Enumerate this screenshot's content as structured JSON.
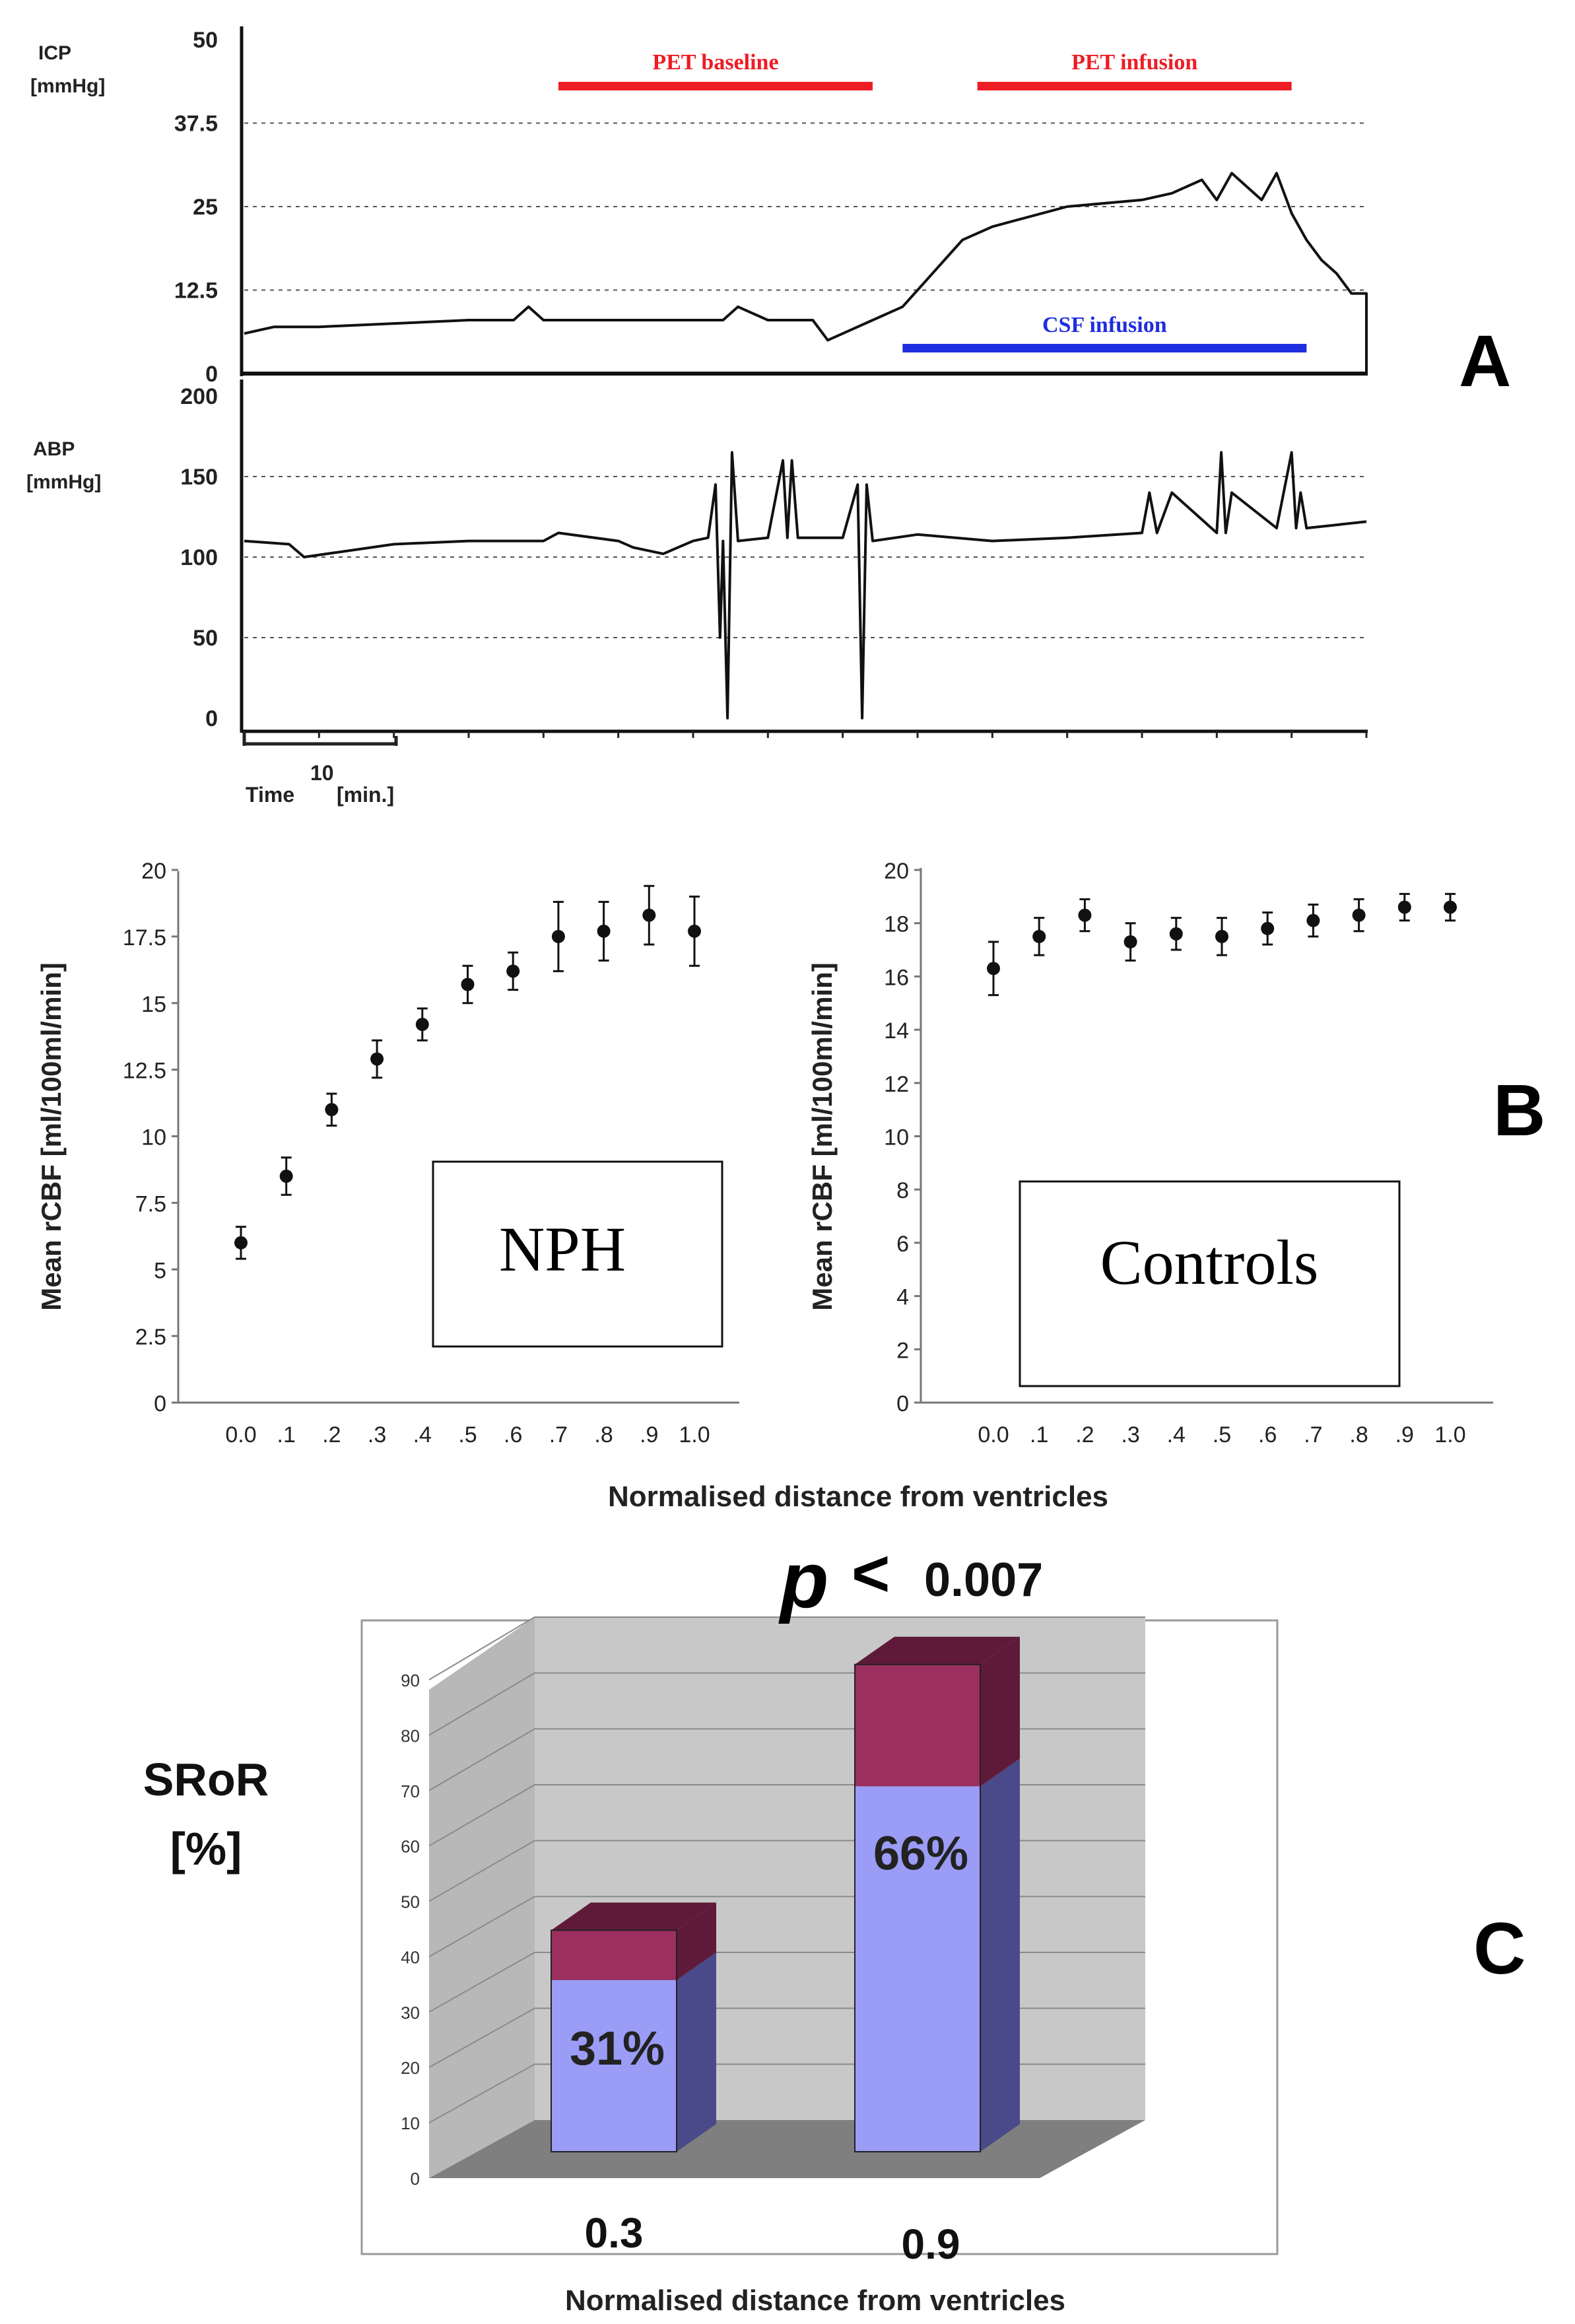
{
  "panel_labels": {
    "a": "A",
    "b": "B",
    "c": "C"
  },
  "colors": {
    "pet_bar": "#ee1c24",
    "csf_bar": "#1f2de0",
    "trace": "#111111",
    "grid": "#555555",
    "bar_front": "#9a9cf5",
    "bar_front_side": "#4a4a8a",
    "bar_top_segment": "#9b2f5f",
    "bar_top_segment_dark": "#5e1a38",
    "wall": "#c8c8c8",
    "floor": "#808080"
  },
  "chart_data": [
    {
      "id": "A-icp",
      "type": "line",
      "ylabel_line1": "ICP",
      "ylabel_line2": "[mmHg]",
      "yticks": [
        "50",
        "37.5",
        "25",
        "12.5",
        "0"
      ],
      "ylim": [
        0,
        50
      ],
      "x_unit": "min",
      "duration_min": 75,
      "annotations": [
        {
          "label": "PET baseline",
          "start_min": 21,
          "end_min": 42,
          "color": "#ee1c24",
          "position": "top"
        },
        {
          "label": "PET infusion",
          "start_min": 49,
          "end_min": 70,
          "color": "#ee1c24",
          "position": "top"
        },
        {
          "label": "CSF infusion",
          "start_min": 44,
          "end_min": 71,
          "color": "#1f2de0",
          "position": "bottom"
        }
      ],
      "series": [
        {
          "name": "ICP",
          "x": [
            0,
            2,
            5,
            10,
            15,
            18,
            19,
            20,
            25,
            30,
            32,
            33,
            35,
            38,
            39,
            40,
            42,
            44,
            46,
            48,
            50,
            55,
            60,
            62,
            64,
            65,
            66,
            68,
            69,
            70,
            71,
            72,
            73,
            74,
            75,
            75
          ],
          "y": [
            6,
            7,
            7,
            7.5,
            8,
            8,
            10,
            8,
            8,
            8,
            8,
            10,
            8,
            8,
            5,
            6,
            8,
            10,
            15,
            20,
            22,
            25,
            26,
            27,
            29,
            26,
            30,
            26,
            30,
            24,
            20,
            17,
            15,
            12,
            12,
            0
          ]
        }
      ]
    },
    {
      "id": "A-abp",
      "type": "line",
      "ylabel_line1": "ABP",
      "ylabel_line2": "[mmHg]",
      "yticks": [
        "200",
        "150",
        "100",
        "50",
        "0"
      ],
      "ylim": [
        0,
        200
      ],
      "x_unit": "min",
      "duration_min": 75,
      "xlabel": "Time",
      "xlabel_unit": "[min.]",
      "scale_bar_label": "10",
      "series": [
        {
          "name": "ABP",
          "x": [
            0,
            3,
            4,
            10,
            15,
            20,
            21,
            25,
            26,
            28,
            30,
            31,
            31.5,
            31.8,
            32,
            32.3,
            32.6,
            33,
            35,
            36,
            36.3,
            36.6,
            37,
            40,
            41,
            41.3,
            41.6,
            42,
            45,
            50,
            55,
            60,
            60.5,
            61,
            62,
            65,
            65.3,
            65.6,
            66,
            69,
            70,
            70.3,
            70.6,
            71,
            73,
            75
          ],
          "y": [
            110,
            108,
            100,
            108,
            110,
            110,
            115,
            110,
            106,
            102,
            110,
            112,
            145,
            50,
            110,
            0,
            165,
            110,
            112,
            160,
            112,
            160,
            112,
            112,
            145,
            0,
            145,
            110,
            114,
            110,
            112,
            115,
            140,
            115,
            140,
            115,
            165,
            115,
            140,
            118,
            165,
            118,
            140,
            118,
            120,
            122
          ]
        }
      ]
    },
    {
      "id": "B-NPH",
      "type": "scatter",
      "title": "NPH",
      "ylabel": "Mean rCBF [ml/100ml/min]",
      "ylim": [
        0,
        20
      ],
      "yticks": [
        "0",
        "2.5",
        "5",
        "7.5",
        "10",
        "12.5",
        "15",
        "17.5",
        "20"
      ],
      "categories": [
        "0.0",
        ".1",
        ".2",
        ".3",
        ".4",
        ".5",
        ".6",
        ".7",
        ".8",
        ".9",
        "1.0"
      ],
      "values": [
        6.0,
        8.5,
        11.0,
        12.9,
        14.2,
        15.7,
        16.2,
        17.5,
        17.7,
        18.3,
        17.7
      ],
      "errors": [
        0.6,
        0.7,
        0.6,
        0.7,
        0.6,
        0.7,
        0.7,
        1.3,
        1.1,
        1.1,
        1.3
      ]
    },
    {
      "id": "B-Controls",
      "type": "scatter",
      "title": "Controls",
      "ylabel": "Mean rCBF [ml/100ml/min]",
      "ylim": [
        0,
        20
      ],
      "yticks": [
        "0",
        "2",
        "4",
        "6",
        "8",
        "10",
        "12",
        "14",
        "16",
        "18",
        "20"
      ],
      "categories": [
        "0.0",
        ".1",
        ".2",
        ".3",
        ".4",
        ".5",
        ".6",
        ".7",
        ".8",
        ".9",
        "1.0"
      ],
      "values": [
        16.3,
        17.5,
        18.3,
        17.3,
        17.6,
        17.5,
        17.8,
        18.1,
        18.3,
        18.6,
        18.6
      ],
      "errors": [
        1.0,
        0.7,
        0.6,
        0.7,
        0.6,
        0.7,
        0.6,
        0.6,
        0.6,
        0.5,
        0.5
      ],
      "xlabel": "Normalised distance from ventricles"
    },
    {
      "id": "C-SRoR",
      "type": "bar",
      "ylabel_line1": "SRoR",
      "ylabel_line2": "[%]",
      "ylim": [
        0,
        90
      ],
      "yticks": [
        "0",
        "10",
        "20",
        "30",
        "40",
        "50",
        "60",
        "70",
        "80",
        "90"
      ],
      "categories": [
        "0.3",
        "0.9"
      ],
      "series": [
        {
          "name": "lower",
          "values": [
            31,
            66
          ]
        },
        {
          "name": "upper",
          "values": [
            9,
            22
          ]
        }
      ],
      "data_labels": [
        "31%",
        "66%"
      ],
      "p_symbol": "p",
      "p_operator": "<",
      "p_value": "0.007",
      "xlabel": "Normalised distance from ventricles"
    }
  ]
}
